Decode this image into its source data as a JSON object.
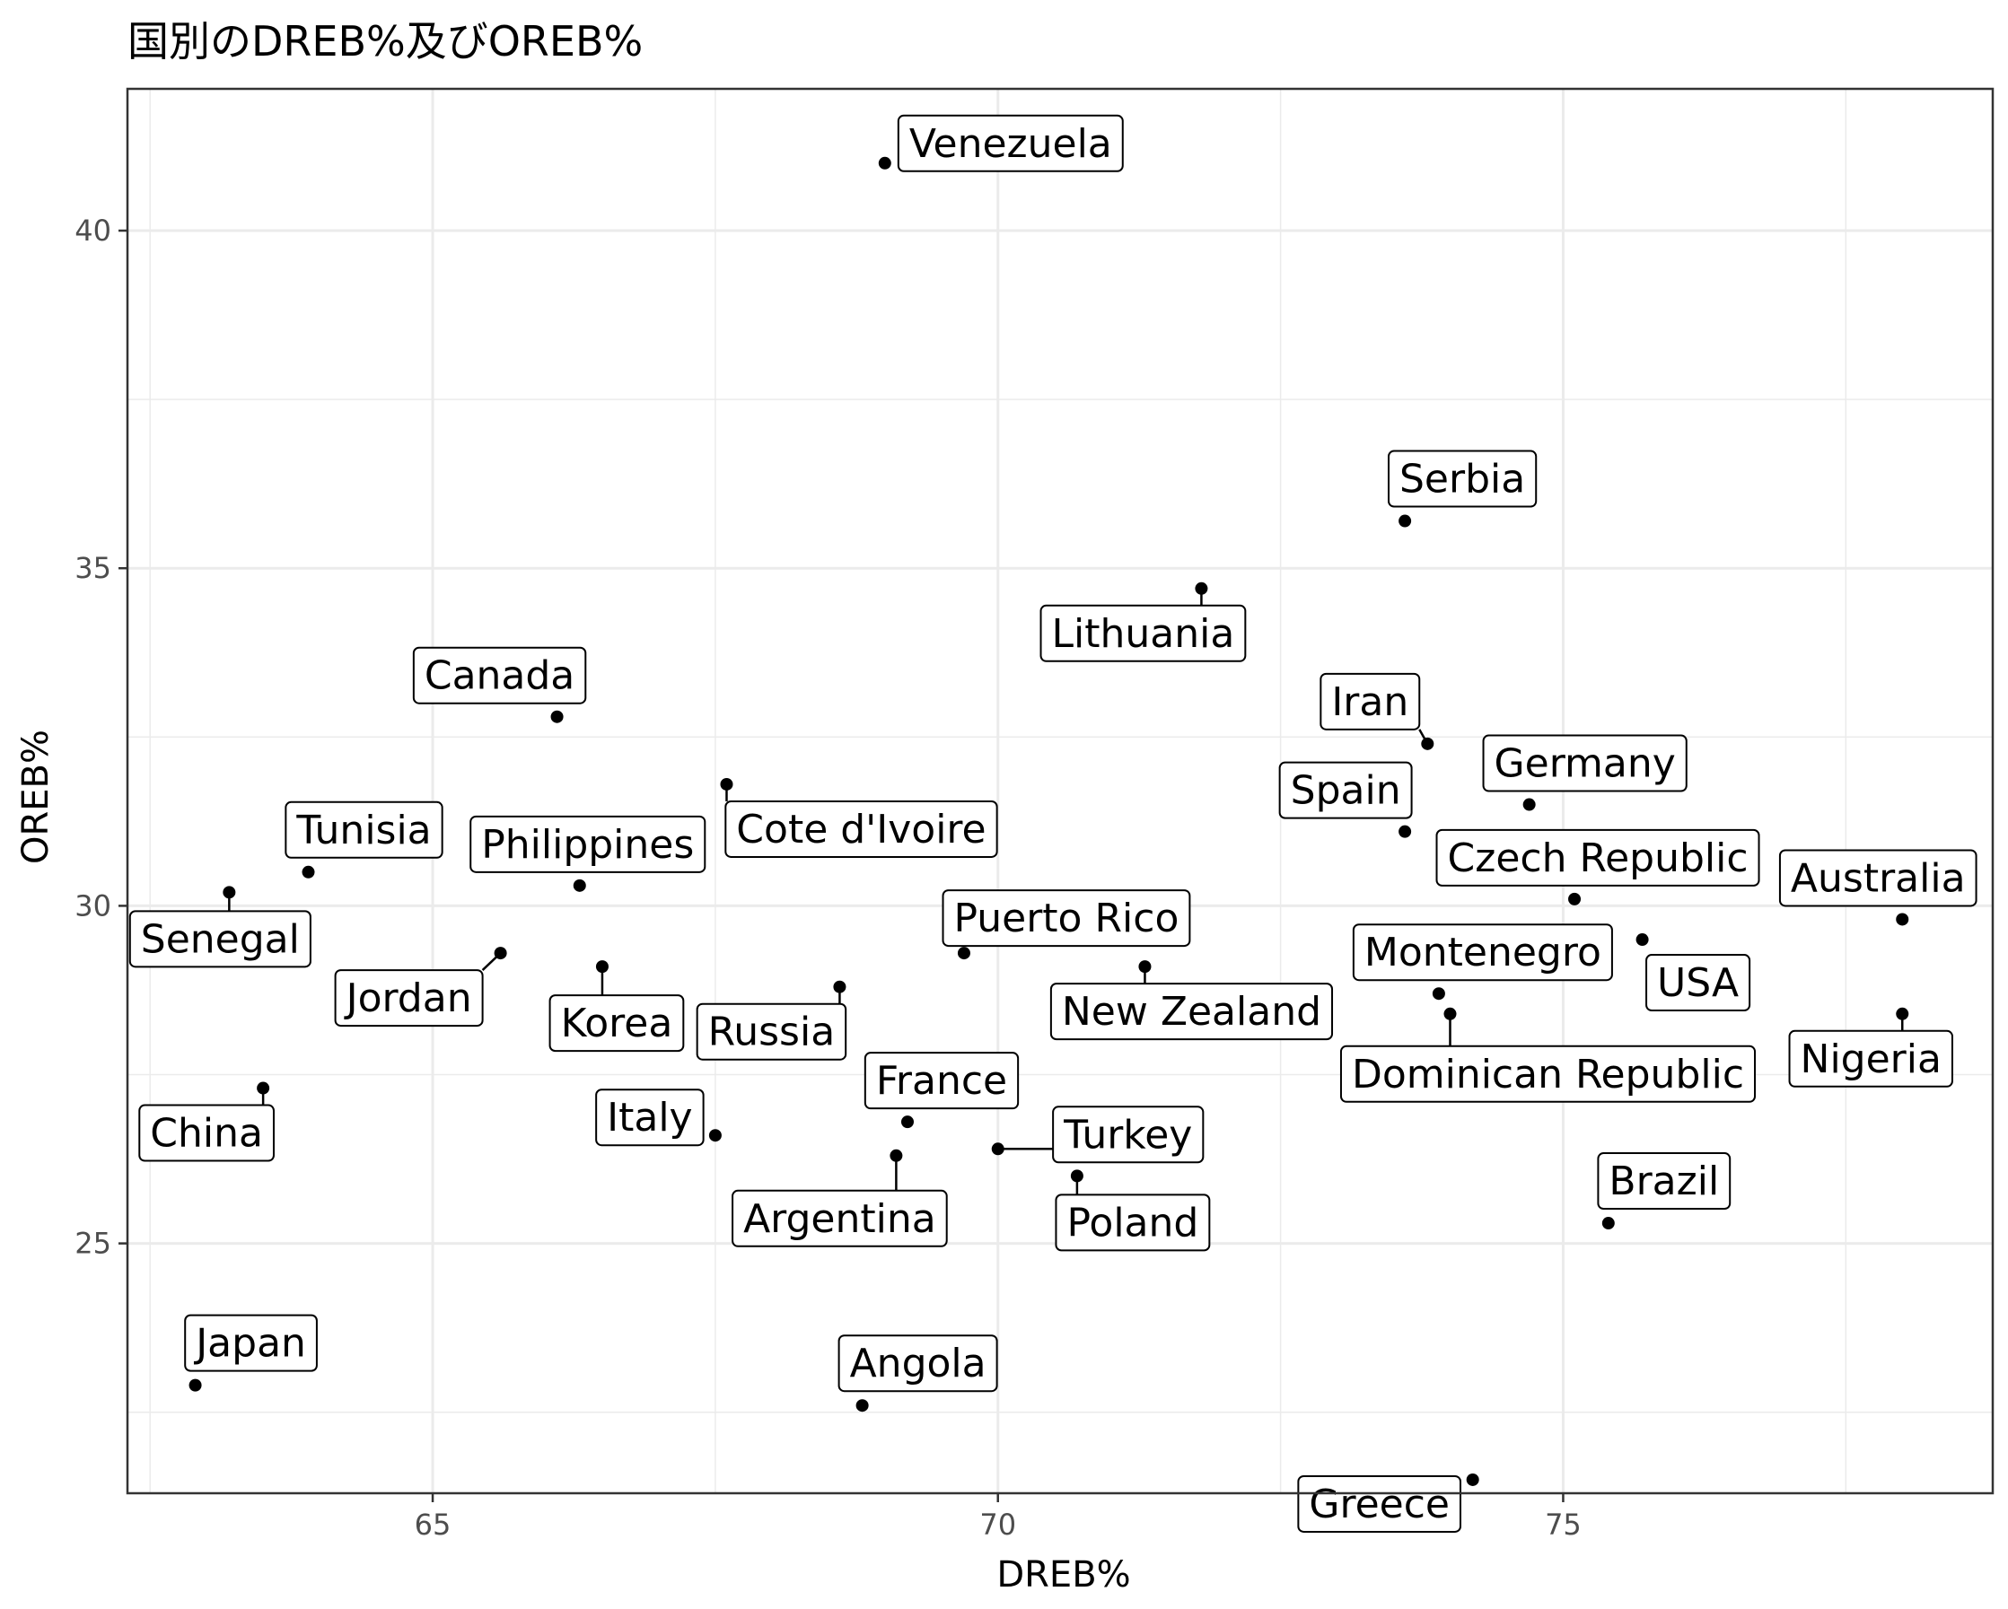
{
  "chart_data": {
    "type": "scatter",
    "title": "国別のDREB%及びOREB%",
    "xlabel": "DREB%",
    "ylabel": "OREB%",
    "xlim": [
      62.3,
      78.8
    ],
    "ylim": [
      21.3,
      42.1
    ],
    "xticks": [
      65,
      70,
      75
    ],
    "yticks": [
      25,
      30,
      35,
      40
    ],
    "x_tick_labels": [
      "65",
      "70",
      "75"
    ],
    "y_tick_labels": [
      "25",
      "30",
      "35",
      "40"
    ],
    "grid": true,
    "legend": "none",
    "colors": {
      "point": "#000000",
      "grid": "#ebebeb",
      "border": "#333333",
      "tick_text": "#4d4d4d"
    },
    "points": [
      {
        "label": "Venezuela",
        "x": 69.0,
        "y": 41.0
      },
      {
        "label": "Serbia",
        "x": 73.6,
        "y": 35.7
      },
      {
        "label": "Lithuania",
        "x": 71.8,
        "y": 34.7
      },
      {
        "label": "Canada",
        "x": 66.1,
        "y": 32.8
      },
      {
        "label": "Iran",
        "x": 73.8,
        "y": 32.4
      },
      {
        "label": "Cote d'Ivoire",
        "x": 67.6,
        "y": 31.8
      },
      {
        "label": "Germany",
        "x": 74.7,
        "y": 31.5
      },
      {
        "label": "Spain",
        "x": 73.6,
        "y": 31.1
      },
      {
        "label": "Tunisia",
        "x": 63.9,
        "y": 30.5
      },
      {
        "label": "Philippines",
        "x": 66.3,
        "y": 30.3
      },
      {
        "label": "Senegal",
        "x": 63.2,
        "y": 30.2
      },
      {
        "label": "Czech Republic",
        "x": 75.1,
        "y": 30.1
      },
      {
        "label": "Australia",
        "x": 78.0,
        "y": 29.8
      },
      {
        "label": "USA",
        "x": 75.7,
        "y": 29.5
      },
      {
        "label": "Jordan",
        "x": 65.6,
        "y": 29.3
      },
      {
        "label": "Puerto Rico",
        "x": 69.7,
        "y": 29.3
      },
      {
        "label": "Korea",
        "x": 66.5,
        "y": 29.1
      },
      {
        "label": "New Zealand",
        "x": 71.3,
        "y": 29.1
      },
      {
        "label": "Russia",
        "x": 68.6,
        "y": 28.8
      },
      {
        "label": "Montenegro",
        "x": 73.9,
        "y": 28.7
      },
      {
        "label": "Nigeria",
        "x": 78.0,
        "y": 28.4
      },
      {
        "label": "Dominican Republic",
        "x": 74.0,
        "y": 28.4
      },
      {
        "label": "China",
        "x": 63.5,
        "y": 27.3
      },
      {
        "label": "France",
        "x": 69.2,
        "y": 26.8
      },
      {
        "label": "Italy",
        "x": 67.5,
        "y": 26.6
      },
      {
        "label": "Turkey",
        "x": 70.0,
        "y": 26.4
      },
      {
        "label": "Argentina",
        "x": 69.1,
        "y": 26.3
      },
      {
        "label": "Poland",
        "x": 70.7,
        "y": 26.0
      },
      {
        "label": "Brazil",
        "x": 75.4,
        "y": 25.3
      },
      {
        "label": "Japan",
        "x": 62.9,
        "y": 22.9
      },
      {
        "label": "Angola",
        "x": 68.8,
        "y": 22.6
      },
      {
        "label": "Greece",
        "x": 74.2,
        "y": 21.5
      }
    ]
  }
}
